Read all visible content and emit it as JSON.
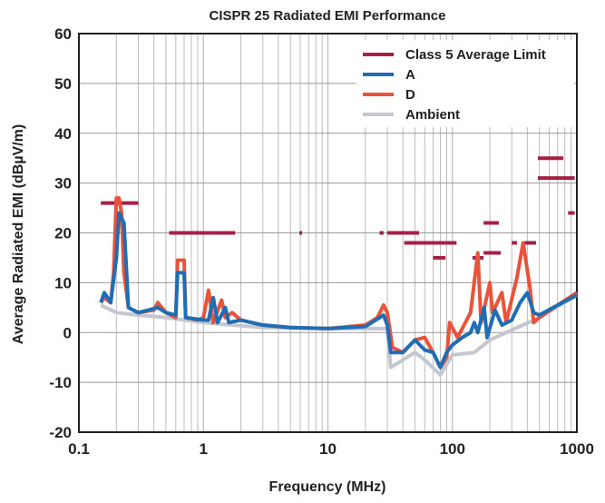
{
  "chart_data": {
    "type": "line",
    "title": "CISPR 25 Radiated EMI Performance",
    "xlabel": "Frequency (MHz)",
    "ylabel": "Average Radiated EMI (dBµV/m)",
    "xscale": "log",
    "xlim": [
      0.1,
      1000
    ],
    "ylim": [
      -20,
      60
    ],
    "xticks": [
      "0.1",
      "1",
      "10",
      "100",
      "1000"
    ],
    "yticks": [
      "-20",
      "-10",
      "0",
      "10",
      "20",
      "30",
      "40",
      "50",
      "60"
    ],
    "grid": true,
    "legend": "top-right",
    "limit": {
      "name": "Class 5 Average Limit",
      "color": "#a81f45",
      "segments": [
        [
          0.15,
          0.3,
          26
        ],
        [
          0.53,
          1.8,
          20
        ],
        [
          5.9,
          6.2,
          20
        ],
        [
          26,
          28,
          20
        ],
        [
          30,
          54,
          20
        ],
        [
          41,
          108,
          18
        ],
        [
          70,
          88,
          15
        ],
        [
          145,
          178,
          15
        ],
        [
          178,
          236,
          22
        ],
        [
          178,
          245,
          16
        ],
        [
          300,
          330,
          18
        ],
        [
          380,
          470,
          18
        ],
        [
          486,
          778,
          35
        ],
        [
          486,
          960,
          31
        ],
        [
          850,
          960,
          24
        ]
      ]
    },
    "series": [
      {
        "name": "A",
        "color": "#1f6db4",
        "points": [
          [
            0.15,
            6
          ],
          [
            0.16,
            8
          ],
          [
            0.18,
            6
          ],
          [
            0.2,
            15
          ],
          [
            0.21,
            24
          ],
          [
            0.23,
            22
          ],
          [
            0.25,
            5
          ],
          [
            0.3,
            4
          ],
          [
            0.43,
            5
          ],
          [
            0.5,
            4
          ],
          [
            0.6,
            3.5
          ],
          [
            0.62,
            12
          ],
          [
            0.7,
            12
          ],
          [
            0.72,
            3
          ],
          [
            1.0,
            2.5
          ],
          [
            1.1,
            2.5
          ],
          [
            1.2,
            7
          ],
          [
            1.3,
            2
          ],
          [
            1.5,
            5
          ],
          [
            1.6,
            2
          ],
          [
            2,
            2.5
          ],
          [
            3,
            1.5
          ],
          [
            5,
            1
          ],
          [
            10,
            0.8
          ],
          [
            20,
            1.2
          ],
          [
            28,
            3.5
          ],
          [
            30,
            1.5
          ],
          [
            32,
            -4
          ],
          [
            40,
            -4
          ],
          [
            50,
            -1.5
          ],
          [
            60,
            -3.5
          ],
          [
            70,
            -4
          ],
          [
            80,
            -7
          ],
          [
            90,
            -4
          ],
          [
            100,
            -2.5
          ],
          [
            120,
            -1
          ],
          [
            140,
            0
          ],
          [
            150,
            2
          ],
          [
            160,
            0
          ],
          [
            180,
            5
          ],
          [
            190,
            -1
          ],
          [
            220,
            4.5
          ],
          [
            250,
            1.5
          ],
          [
            300,
            2.5
          ],
          [
            350,
            6
          ],
          [
            400,
            8
          ],
          [
            450,
            4
          ],
          [
            500,
            3.5
          ],
          [
            700,
            5.5
          ],
          [
            1000,
            7.5
          ]
        ]
      },
      {
        "name": "D",
        "color": "#e8533a",
        "points": [
          [
            0.15,
            6
          ],
          [
            0.16,
            7
          ],
          [
            0.18,
            6
          ],
          [
            0.19,
            12
          ],
          [
            0.2,
            27
          ],
          [
            0.21,
            27
          ],
          [
            0.22,
            24
          ],
          [
            0.23,
            12
          ],
          [
            0.25,
            5
          ],
          [
            0.3,
            4
          ],
          [
            0.4,
            4.5
          ],
          [
            0.43,
            6
          ],
          [
            0.5,
            4
          ],
          [
            0.6,
            3
          ],
          [
            0.62,
            14.5
          ],
          [
            0.7,
            14.5
          ],
          [
            0.72,
            3
          ],
          [
            0.9,
            2.5
          ],
          [
            1.0,
            3
          ],
          [
            1.1,
            8.5
          ],
          [
            1.2,
            2
          ],
          [
            1.4,
            6.5
          ],
          [
            1.5,
            3
          ],
          [
            1.7,
            4
          ],
          [
            2,
            2.5
          ],
          [
            3,
            1.5
          ],
          [
            5,
            1
          ],
          [
            10,
            0.8
          ],
          [
            20,
            1.5
          ],
          [
            25,
            3
          ],
          [
            28,
            5.5
          ],
          [
            30,
            4
          ],
          [
            33,
            -3
          ],
          [
            40,
            -4
          ],
          [
            50,
            -1.5
          ],
          [
            60,
            -1
          ],
          [
            70,
            -4
          ],
          [
            80,
            -7
          ],
          [
            90,
            -5
          ],
          [
            95,
            2
          ],
          [
            110,
            -1
          ],
          [
            140,
            4
          ],
          [
            160,
            16
          ],
          [
            170,
            2
          ],
          [
            200,
            10
          ],
          [
            210,
            4
          ],
          [
            250,
            8
          ],
          [
            270,
            2
          ],
          [
            330,
            11
          ],
          [
            370,
            18
          ],
          [
            420,
            9
          ],
          [
            450,
            2
          ],
          [
            500,
            3
          ],
          [
            700,
            5.5
          ],
          [
            1000,
            8
          ]
        ]
      },
      {
        "name": "Ambient",
        "color": "#c4c6d0",
        "points": [
          [
            0.15,
            5.5
          ],
          [
            0.2,
            4
          ],
          [
            0.3,
            3.5
          ],
          [
            0.5,
            3
          ],
          [
            1,
            2
          ],
          [
            3,
            1
          ],
          [
            10,
            0.8
          ],
          [
            30,
            0.8
          ],
          [
            32,
            -7
          ],
          [
            40,
            -5.5
          ],
          [
            50,
            -4
          ],
          [
            60,
            -5.5
          ],
          [
            80,
            -8.5
          ],
          [
            100,
            -4.5
          ],
          [
            150,
            -4
          ],
          [
            200,
            -1.5
          ],
          [
            300,
            0.5
          ],
          [
            500,
            3
          ],
          [
            1000,
            7.5
          ]
        ]
      }
    ]
  }
}
